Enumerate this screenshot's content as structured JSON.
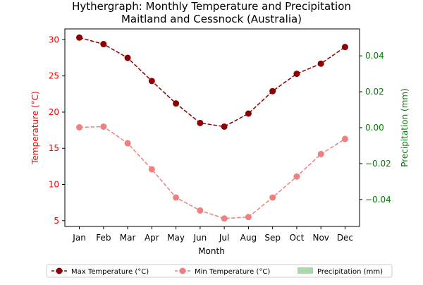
{
  "chart_data": {
    "type": "line",
    "title": "Hythergraph: Monthly Temperature and Precipitation",
    "subtitle": "Maitland and Cessnock (Australia)",
    "xlabel": "Month",
    "ylabel_left": "Temperature (°C)",
    "ylabel_right": "Precipitation (mm)",
    "categories": [
      "Jan",
      "Feb",
      "Mar",
      "Apr",
      "May",
      "Jun",
      "Jul",
      "Aug",
      "Sep",
      "Oct",
      "Nov",
      "Dec"
    ],
    "ylim_left": [
      4.2,
      31.5
    ],
    "ylim_right": [
      -0.055,
      0.055
    ],
    "yticks_left": [
      "5",
      "10",
      "15",
      "20",
      "25",
      "30"
    ],
    "yticks_right": [
      "−0.04",
      "−0.02",
      "0.00",
      "0.02",
      "0.04"
    ],
    "series": [
      {
        "name": "Max Temperature (°C)",
        "axis": "left",
        "color": "#8b0000",
        "values": [
          30.3,
          29.4,
          27.5,
          24.3,
          21.2,
          18.5,
          18.0,
          19.8,
          22.9,
          25.3,
          26.7,
          29.0
        ]
      },
      {
        "name": "Min Temperature (°C)",
        "axis": "left",
        "color": "#f08080",
        "values": [
          17.9,
          18.0,
          15.7,
          12.1,
          8.2,
          6.4,
          5.3,
          5.5,
          8.2,
          11.1,
          14.2,
          16.3
        ]
      },
      {
        "name": "Precipitation (mm)",
        "axis": "right",
        "type": "bar",
        "color": "#a9d9a9",
        "values": [
          0,
          0,
          0,
          0,
          0,
          0,
          0,
          0,
          0,
          0,
          0,
          0
        ]
      }
    ],
    "legend_position": "bottom",
    "grid": false,
    "colors": {
      "left_axis": "#ff0000",
      "right_axis": "#008000"
    }
  }
}
